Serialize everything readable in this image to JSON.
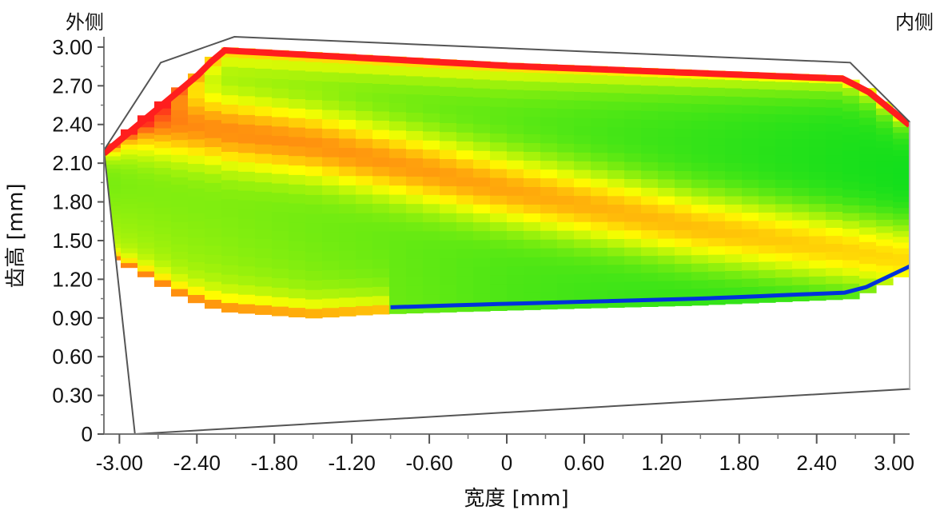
{
  "chart_data": {
    "type": "heatmap",
    "title": "",
    "xlabel": "宽度 [mm]",
    "ylabel": "齿高 [mm]",
    "corner_left": "外侧",
    "corner_right": "内侧",
    "xlim": [
      -3.12,
      3.12
    ],
    "ylim": [
      0,
      3.08
    ],
    "x_ticks": [
      {
        "value": -3.0,
        "label": "-3.00"
      },
      {
        "value": -2.4,
        "label": "-2.40"
      },
      {
        "value": -1.8,
        "label": "-1.80"
      },
      {
        "value": -1.2,
        "label": "-1.20"
      },
      {
        "value": -0.6,
        "label": "-0.60"
      },
      {
        "value": 0,
        "label": "0"
      },
      {
        "value": 0.6,
        "label": "0.60"
      },
      {
        "value": 1.2,
        "label": "1.20"
      },
      {
        "value": 1.8,
        "label": "1.80"
      },
      {
        "value": 2.4,
        "label": "2.40"
      },
      {
        "value": 3.0,
        "label": "3.00"
      }
    ],
    "y_ticks": [
      {
        "value": 0,
        "label": "0"
      },
      {
        "value": 0.3,
        "label": "0.30"
      },
      {
        "value": 0.6,
        "label": "0.60"
      },
      {
        "value": 0.9,
        "label": "0.90"
      },
      {
        "value": 1.2,
        "label": "1.20"
      },
      {
        "value": 1.5,
        "label": "1.50"
      },
      {
        "value": 1.8,
        "label": "1.80"
      },
      {
        "value": 2.1,
        "label": "2.10"
      },
      {
        "value": 2.4,
        "label": "2.40"
      },
      {
        "value": 2.7,
        "label": "2.70"
      },
      {
        "value": 3.0,
        "label": "3.00"
      }
    ],
    "tooth_outline": [
      [
        -3.12,
        2.2
      ],
      [
        -2.68,
        2.88
      ],
      [
        -2.11,
        3.08
      ],
      [
        2.66,
        2.88
      ],
      [
        3.12,
        2.42
      ],
      [
        3.12,
        0.35
      ],
      [
        -2.88,
        0.0
      ]
    ],
    "contact_pattern": {
      "x_range": [
        -3.12,
        3.12
      ],
      "bands": 48,
      "top_boundary": [
        [
          -3.12,
          2.2
        ],
        [
          -2.88,
          2.4
        ],
        [
          -2.4,
          2.8
        ],
        [
          -2.2,
          3.0
        ],
        [
          0.0,
          2.88
        ],
        [
          2.6,
          2.78
        ],
        [
          2.8,
          2.68
        ],
        [
          3.12,
          2.42
        ]
      ],
      "bottom_boundary": [
        [
          -3.12,
          1.38
        ],
        [
          -2.9,
          1.28
        ],
        [
          -2.5,
          1.05
        ],
        [
          -2.2,
          0.95
        ],
        [
          -1.5,
          0.9
        ],
        [
          -1.0,
          0.93
        ],
        [
          0.0,
          0.96
        ],
        [
          1.5,
          1.0
        ],
        [
          2.7,
          1.05
        ],
        [
          3.12,
          1.25
        ]
      ],
      "value_scale": {
        "min_color": "#00dc1e",
        "mid_color": "#ffff00",
        "high_color": "#ff1e1e",
        "edge_color": "#0032dc"
      },
      "ridge_line": [
        [
          -3.12,
          2.5
        ],
        [
          -1.5,
          2.25
        ],
        [
          0.0,
          1.9
        ],
        [
          1.5,
          1.6
        ],
        [
          3.12,
          1.35
        ]
      ],
      "edge_band": [
        [
          -0.9,
          1.03
        ],
        [
          3.12,
          1.25
        ]
      ]
    }
  }
}
